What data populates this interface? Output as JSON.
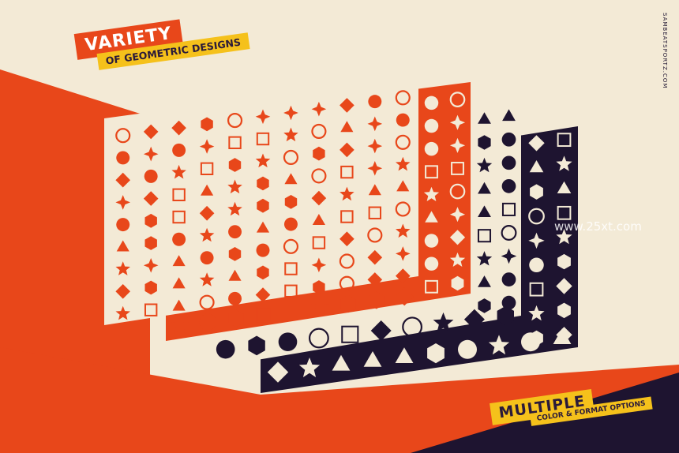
{
  "headline": {
    "title": "VARIETY",
    "subtitle": "OF GEOMETRIC DESIGNS"
  },
  "footer": {
    "title": "MULTIPLE",
    "subtitle": "COLOR & FORMAT OPTIONS"
  },
  "author_credit": "SAMBEATSPORTZ.COM",
  "watermark": "www.25xt.com",
  "colors": {
    "background": "#f3ead6",
    "accent_orange": "#e8471a",
    "accent_yellow": "#f5c11b",
    "dark_purple": "#1e1430",
    "cream": "#f3ead6"
  },
  "icon_sets": [
    "cream-sheet-orange-icons",
    "orange-sheet-cream-icons",
    "cream-sheet-dark-icons",
    "dark-sheet-cream-icons"
  ]
}
